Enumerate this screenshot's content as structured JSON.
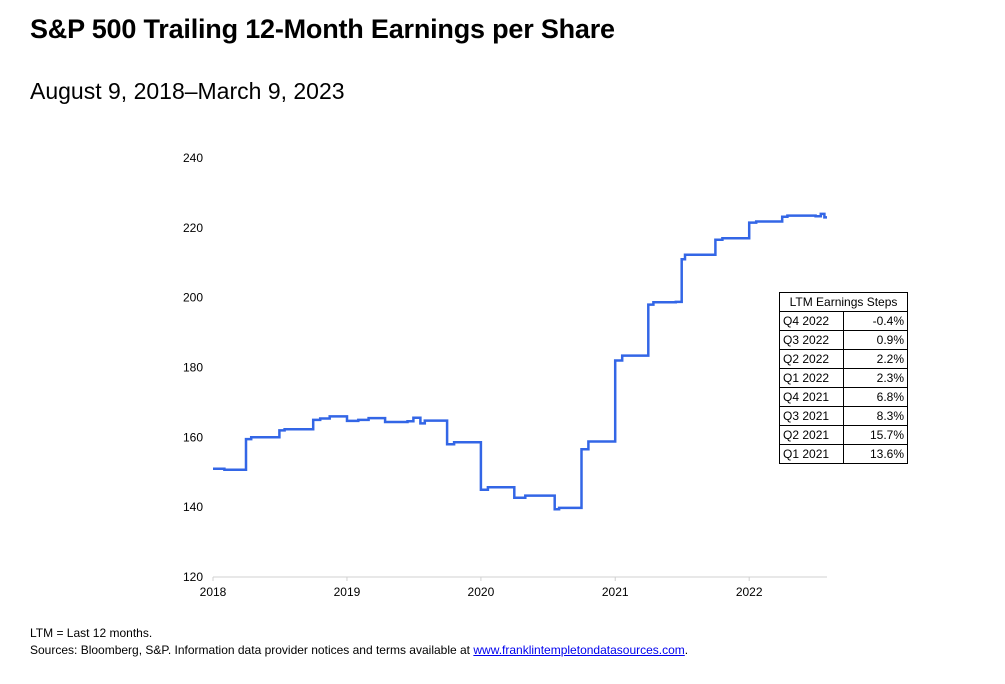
{
  "title": "S&P 500 Trailing 12-Month Earnings per Share",
  "subtitle": "August 9, 2018–March 9, 2023",
  "colors": {
    "line": "#3366e6",
    "axis": "#d0d0d0"
  },
  "table": {
    "header": "LTM Earnings Steps",
    "rows": [
      {
        "quarter": "Q4 2022",
        "value": "-0.4%"
      },
      {
        "quarter": "Q3 2022",
        "value": "0.9%"
      },
      {
        "quarter": "Q2 2022",
        "value": "2.2%"
      },
      {
        "quarter": "Q1 2022",
        "value": "2.3%"
      },
      {
        "quarter": "Q4 2021",
        "value": "6.8%"
      },
      {
        "quarter": "Q3 2021",
        "value": "8.3%"
      },
      {
        "quarter": "Q2 2021",
        "value": "15.7%"
      },
      {
        "quarter": "Q1 2021",
        "value": "13.6%"
      }
    ]
  },
  "footnote": {
    "line1": "LTM = Last 12 months.",
    "line2_prefix": "Sources: Bloomberg, S&P. Information data provider notices and terms available at ",
    "link": "www.franklintempletondatasources.com",
    "line2_suffix": "."
  },
  "chart_data": {
    "type": "line",
    "step": true,
    "xlabel": "",
    "ylabel": "",
    "xlim": [
      "2018-01-01",
      "2022-08-01"
    ],
    "ylim": [
      120,
      240
    ],
    "x_ticks": [
      "2018",
      "2019",
      "2020",
      "2021",
      "2022"
    ],
    "y_ticks": [
      120,
      140,
      160,
      180,
      200,
      220,
      240
    ],
    "grid": false,
    "series": [
      {
        "points": [
          [
            "2018-01-01",
            151.0
          ],
          [
            "2018-02-01",
            150.7
          ],
          [
            "2018-04-01",
            159.5
          ],
          [
            "2018-04-15",
            160.0
          ],
          [
            "2018-07-01",
            162.0
          ],
          [
            "2018-07-15",
            162.3
          ],
          [
            "2018-10-01",
            165.0
          ],
          [
            "2018-10-20",
            165.4
          ],
          [
            "2018-11-15",
            166.0
          ],
          [
            "2019-01-01",
            164.7
          ],
          [
            "2019-02-01",
            165.0
          ],
          [
            "2019-03-01",
            165.5
          ],
          [
            "2019-04-15",
            164.4
          ],
          [
            "2019-06-15",
            164.6
          ],
          [
            "2019-07-01",
            165.6
          ],
          [
            "2019-07-20",
            164.0
          ],
          [
            "2019-08-01",
            164.8
          ],
          [
            "2019-10-01",
            158.0
          ],
          [
            "2019-10-20",
            158.6
          ],
          [
            "2020-01-01",
            145.0
          ],
          [
            "2020-01-20",
            145.7
          ],
          [
            "2020-04-01",
            142.7
          ],
          [
            "2020-05-01",
            143.3
          ],
          [
            "2020-07-20",
            139.4
          ],
          [
            "2020-08-01",
            139.8
          ],
          [
            "2020-10-01",
            156.6
          ],
          [
            "2020-10-20",
            158.8
          ],
          [
            "2021-01-01",
            182.0
          ],
          [
            "2021-01-20",
            183.4
          ],
          [
            "2021-04-01",
            198.0
          ],
          [
            "2021-04-15",
            198.7
          ],
          [
            "2021-06-15",
            198.8
          ],
          [
            "2021-07-01",
            211.0
          ],
          [
            "2021-07-10",
            212.3
          ],
          [
            "2021-10-01",
            216.6
          ],
          [
            "2021-10-20",
            217.0
          ],
          [
            "2022-01-01",
            221.5
          ],
          [
            "2022-01-20",
            221.8
          ],
          [
            "2022-04-01",
            223.2
          ],
          [
            "2022-04-15",
            223.5
          ],
          [
            "2022-07-01",
            223.3
          ],
          [
            "2022-07-15",
            224.0
          ],
          [
            "2022-07-25",
            223.0
          ],
          [
            "2022-08-01",
            223.0
          ]
        ]
      }
    ]
  }
}
